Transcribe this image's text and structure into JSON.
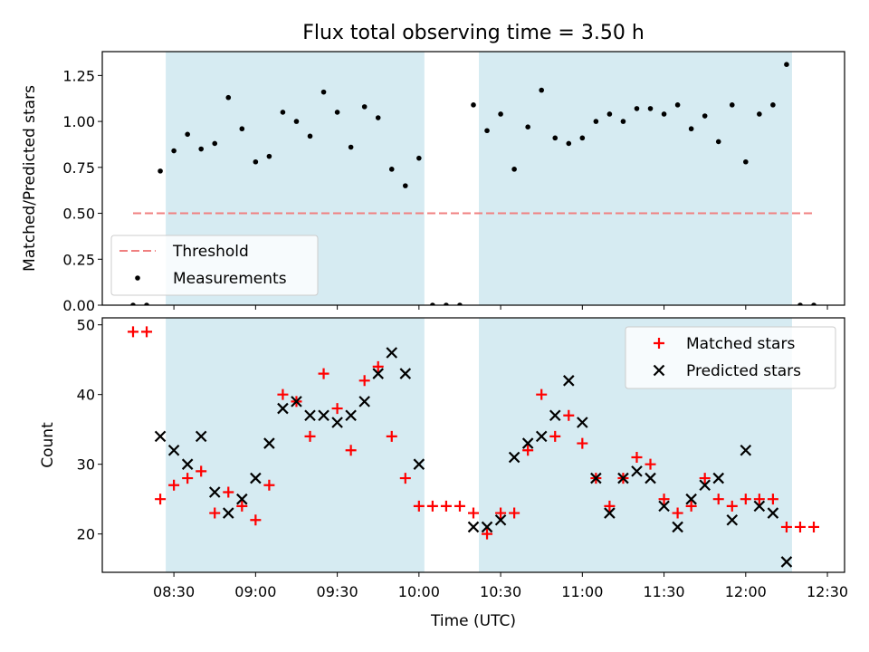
{
  "chart_data": [
    {
      "type": "scatter",
      "title": "Flux total observing time = 3.50 h",
      "xlabel": "",
      "ylabel": "Matched/Predicted stars",
      "ylim": [
        0,
        1.38
      ],
      "yticks": [
        "0.00",
        "0.25",
        "0.50",
        "0.75",
        "1.00",
        "1.25"
      ],
      "xticks": [
        "08:30",
        "09:00",
        "09:30",
        "10:00",
        "10:30",
        "11:00",
        "11:30",
        "12:00",
        "12:30"
      ],
      "shaded_intervals": [
        [
          "08:27",
          "10:02"
        ],
        [
          "10:22",
          "12:17"
        ]
      ],
      "threshold": {
        "name": "Threshold",
        "value": 0.5,
        "x_range": [
          "08:15",
          "12:25"
        ],
        "color": "#f08080"
      },
      "legend": {
        "position": "lower-left",
        "entries": [
          "Threshold",
          "Measurements"
        ]
      },
      "series": [
        {
          "name": "Measurements",
          "color": "#000000",
          "points": [
            [
              "08:15",
              0.0
            ],
            [
              "08:20",
              0.0
            ],
            [
              "08:25",
              0.73
            ],
            [
              "08:30",
              0.84
            ],
            [
              "08:35",
              0.93
            ],
            [
              "08:40",
              0.85
            ],
            [
              "08:45",
              0.88
            ],
            [
              "08:50",
              1.13
            ],
            [
              "08:55",
              0.96
            ],
            [
              "09:00",
              0.78
            ],
            [
              "09:05",
              0.81
            ],
            [
              "09:10",
              1.05
            ],
            [
              "09:15",
              1.0
            ],
            [
              "09:20",
              0.92
            ],
            [
              "09:25",
              1.16
            ],
            [
              "09:30",
              1.05
            ],
            [
              "09:35",
              0.86
            ],
            [
              "09:40",
              1.08
            ],
            [
              "09:45",
              1.02
            ],
            [
              "09:50",
              0.74
            ],
            [
              "09:55",
              0.65
            ],
            [
              "10:00",
              0.8
            ],
            [
              "10:05",
              0.0
            ],
            [
              "10:10",
              0.0
            ],
            [
              "10:15",
              0.0
            ],
            [
              "10:20",
              1.09
            ],
            [
              "10:25",
              0.95
            ],
            [
              "10:30",
              1.04
            ],
            [
              "10:35",
              0.74
            ],
            [
              "10:40",
              0.97
            ],
            [
              "10:45",
              1.17
            ],
            [
              "10:50",
              0.91
            ],
            [
              "10:55",
              0.88
            ],
            [
              "11:00",
              0.91
            ],
            [
              "11:05",
              1.0
            ],
            [
              "11:10",
              1.04
            ],
            [
              "11:15",
              1.0
            ],
            [
              "11:20",
              1.07
            ],
            [
              "11:25",
              1.07
            ],
            [
              "11:30",
              1.04
            ],
            [
              "11:35",
              1.09
            ],
            [
              "11:40",
              0.96
            ],
            [
              "11:45",
              1.03
            ],
            [
              "11:50",
              0.89
            ],
            [
              "11:55",
              1.09
            ],
            [
              "12:00",
              0.78
            ],
            [
              "12:05",
              1.04
            ],
            [
              "12:10",
              1.09
            ],
            [
              "12:15",
              1.31
            ],
            [
              "12:20",
              0.0
            ],
            [
              "12:25",
              0.0
            ]
          ]
        }
      ]
    },
    {
      "type": "scatter",
      "title": "",
      "xlabel": "Time (UTC)",
      "ylabel": "Count",
      "ylim": [
        14.5,
        51
      ],
      "yticks": [
        20,
        30,
        40,
        50
      ],
      "xticks": [
        "08:30",
        "09:00",
        "09:30",
        "10:00",
        "10:30",
        "11:00",
        "11:30",
        "12:00",
        "12:30"
      ],
      "shaded_intervals": [
        [
          "08:27",
          "10:02"
        ],
        [
          "10:22",
          "12:17"
        ]
      ],
      "legend": {
        "position": "upper-right",
        "entries": [
          "Matched stars",
          "Predicted stars"
        ]
      },
      "series": [
        {
          "name": "Matched stars",
          "marker": "plus",
          "color": "#ff0000",
          "points": [
            [
              "08:15",
              49
            ],
            [
              "08:20",
              49
            ],
            [
              "08:25",
              25
            ],
            [
              "08:30",
              27
            ],
            [
              "08:35",
              28
            ],
            [
              "08:40",
              29
            ],
            [
              "08:45",
              23
            ],
            [
              "08:50",
              26
            ],
            [
              "08:55",
              24
            ],
            [
              "09:00",
              22
            ],
            [
              "09:05",
              27
            ],
            [
              "09:10",
              40
            ],
            [
              "09:15",
              39
            ],
            [
              "09:20",
              34
            ],
            [
              "09:25",
              43
            ],
            [
              "09:30",
              38
            ],
            [
              "09:35",
              32
            ],
            [
              "09:40",
              42
            ],
            [
              "09:45",
              44
            ],
            [
              "09:50",
              34
            ],
            [
              "09:55",
              28
            ],
            [
              "10:00",
              24
            ],
            [
              "10:05",
              24
            ],
            [
              "10:10",
              24
            ],
            [
              "10:15",
              24
            ],
            [
              "10:20",
              23
            ],
            [
              "10:25",
              20
            ],
            [
              "10:30",
              23
            ],
            [
              "10:35",
              23
            ],
            [
              "10:40",
              32
            ],
            [
              "10:45",
              40
            ],
            [
              "10:50",
              34
            ],
            [
              "10:55",
              37
            ],
            [
              "11:00",
              33
            ],
            [
              "11:05",
              28
            ],
            [
              "11:10",
              24
            ],
            [
              "11:15",
              28
            ],
            [
              "11:20",
              31
            ],
            [
              "11:25",
              30
            ],
            [
              "11:30",
              25
            ],
            [
              "11:35",
              23
            ],
            [
              "11:40",
              24
            ],
            [
              "11:45",
              28
            ],
            [
              "11:50",
              25
            ],
            [
              "11:55",
              24
            ],
            [
              "12:00",
              25
            ],
            [
              "12:05",
              25
            ],
            [
              "12:10",
              25
            ],
            [
              "12:15",
              21
            ],
            [
              "12:20",
              21
            ],
            [
              "12:25",
              21
            ]
          ]
        },
        {
          "name": "Predicted stars",
          "marker": "x",
          "color": "#000000",
          "points": [
            [
              "08:25",
              34
            ],
            [
              "08:30",
              32
            ],
            [
              "08:35",
              30
            ],
            [
              "08:40",
              34
            ],
            [
              "08:45",
              26
            ],
            [
              "08:50",
              23
            ],
            [
              "08:55",
              25
            ],
            [
              "09:00",
              28
            ],
            [
              "09:05",
              33
            ],
            [
              "09:10",
              38
            ],
            [
              "09:15",
              39
            ],
            [
              "09:20",
              37
            ],
            [
              "09:25",
              37
            ],
            [
              "09:30",
              36
            ],
            [
              "09:35",
              37
            ],
            [
              "09:40",
              39
            ],
            [
              "09:45",
              43
            ],
            [
              "09:50",
              46
            ],
            [
              "09:55",
              43
            ],
            [
              "10:00",
              30
            ],
            [
              "10:20",
              21
            ],
            [
              "10:25",
              21
            ],
            [
              "10:30",
              22
            ],
            [
              "10:35",
              31
            ],
            [
              "10:40",
              33
            ],
            [
              "10:45",
              34
            ],
            [
              "10:50",
              37
            ],
            [
              "10:55",
              42
            ],
            [
              "11:00",
              36
            ],
            [
              "11:05",
              28
            ],
            [
              "11:10",
              23
            ],
            [
              "11:15",
              28
            ],
            [
              "11:20",
              29
            ],
            [
              "11:25",
              28
            ],
            [
              "11:30",
              24
            ],
            [
              "11:35",
              21
            ],
            [
              "11:40",
              25
            ],
            [
              "11:45",
              27
            ],
            [
              "11:50",
              28
            ],
            [
              "11:55",
              22
            ],
            [
              "12:00",
              32
            ],
            [
              "12:05",
              24
            ],
            [
              "12:10",
              23
            ],
            [
              "12:15",
              16
            ]
          ]
        }
      ]
    }
  ],
  "colors": {
    "shade": "#add8e6",
    "background": "#ffffff",
    "axes": "#000000"
  }
}
